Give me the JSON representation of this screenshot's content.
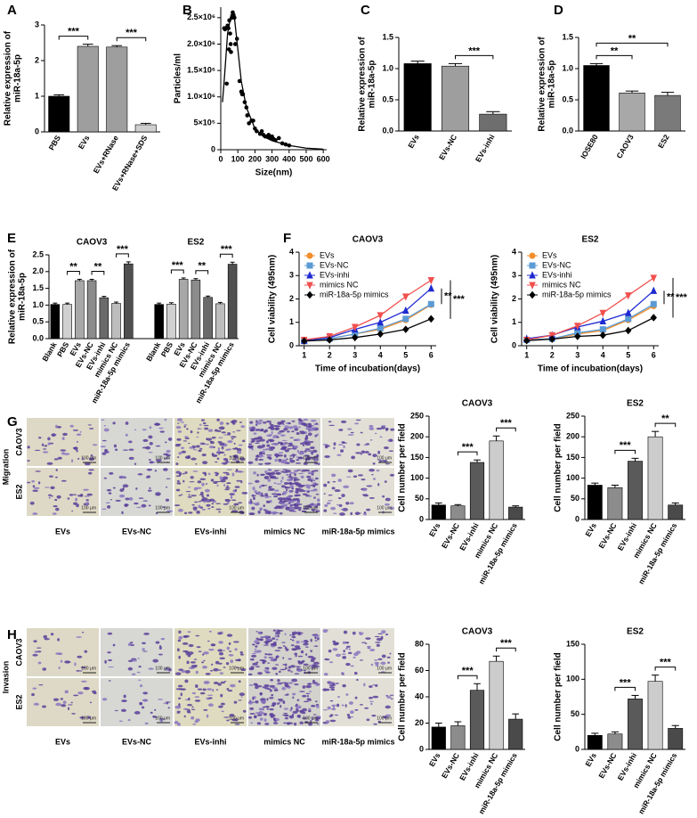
{
  "panel_labels": [
    "A",
    "B",
    "C",
    "D",
    "E",
    "F",
    "G",
    "H"
  ],
  "micrographs": [
    {
      "condition": "Migration",
      "rows": [
        "CAOV3",
        "ES2"
      ],
      "columns": [
        "EVs",
        "EVs-NC",
        "EVs-inhi",
        "mimics NC",
        "miR-18a-5p mimics"
      ],
      "scale_bar": "100 μm"
    },
    {
      "condition": "Invasion",
      "rows": [
        "CAOV3",
        "ES2"
      ],
      "columns": [
        "EVs",
        "EVs-NC",
        "EVs-inhi",
        "mimics NC",
        "miR-18a-5p mimics"
      ],
      "scale_bar": "100 μm"
    }
  ],
  "chart_data": [
    {
      "type": "bar",
      "ylabel": [
        "Relative expression of",
        "miR-18a-5p"
      ],
      "categories": [
        "PBS",
        "EVs",
        "EVs+RNase",
        "EVs+RNase+SDS"
      ],
      "values": [
        1.0,
        2.4,
        2.38,
        0.2
      ],
      "errors": [
        0.04,
        0.06,
        0.04,
        0.04
      ],
      "colors": [
        "#000000",
        "#9e9e9e",
        "#9e9e9e",
        "#cfcfcf"
      ],
      "ylim": [
        0,
        3
      ],
      "yticks": [
        0,
        1,
        2,
        3
      ],
      "annotations": [
        {
          "from": 0,
          "to": 1,
          "text": "***"
        },
        {
          "from": 2,
          "to": 3,
          "text": "***"
        }
      ]
    },
    {
      "type": "scatter",
      "ylabel": "Particles/ml",
      "xlabel": "Size(nm)",
      "color": "#000000",
      "x": [
        20,
        25,
        30,
        35,
        40,
        45,
        48,
        50,
        55,
        58,
        60,
        65,
        70,
        75,
        80,
        85,
        95,
        110,
        120,
        125,
        130,
        140,
        150,
        155,
        165,
        180,
        190,
        200,
        210,
        230,
        240,
        250,
        260,
        270,
        280,
        290,
        300,
        310,
        320,
        340,
        360,
        380,
        400
      ],
      "values": [
        2300000,
        2280000,
        2300000,
        1250000,
        2350000,
        2300000,
        1900000,
        2450000,
        2200000,
        2000000,
        1850000,
        2500000,
        2600000,
        2550000,
        2500000,
        2000000,
        2100000,
        1300000,
        1100000,
        1050000,
        1050000,
        900000,
        800000,
        650000,
        500000,
        550000,
        550000,
        400000,
        350000,
        300000,
        350000,
        280000,
        250000,
        250000,
        280000,
        220000,
        250000,
        200000,
        180000,
        220000,
        120000,
        100000,
        80000
      ],
      "fit_x": [
        10,
        20,
        40,
        60,
        70,
        80,
        100,
        120,
        150,
        200,
        250,
        300,
        400,
        500,
        600
      ],
      "fit_values": [
        900000,
        1300000,
        2200000,
        2550000,
        2600000,
        2500000,
        1900000,
        1300000,
        800000,
        400000,
        250000,
        170000,
        80000,
        30000,
        10000
      ],
      "xlim": [
        0,
        620
      ],
      "xticks": [
        0,
        100,
        200,
        300,
        400,
        500,
        600
      ],
      "ylim": [
        0,
        2700000
      ],
      "yticks": [
        0,
        {
          "value": 500000,
          "label": "5×10⁵"
        },
        {
          "value": 1000000,
          "label": "1.0×10⁶"
        },
        {
          "value": 1500000,
          "label": "1.5×10⁶"
        },
        {
          "value": 2000000,
          "label": "2.0×10⁶"
        },
        {
          "value": 2500000,
          "label": "2.5×10⁶"
        }
      ]
    },
    {
      "type": "bar",
      "ylabel": [
        "Relative expression of",
        "miR-18a-5p"
      ],
      "categories": [
        "EVs",
        "EVs-NC",
        "EVs-inhi"
      ],
      "values": [
        1.08,
        1.04,
        0.27
      ],
      "errors": [
        0.04,
        0.04,
        0.04
      ],
      "colors": [
        "#000000",
        "#9e9e9e",
        "#6e6e6e"
      ],
      "ylim": [
        0,
        1.5
      ],
      "yticks": [
        {
          "value": 0,
          "label": "0.0"
        },
        0.5,
        {
          "value": 1,
          "label": "1.0"
        },
        1.5
      ],
      "annotations": [
        {
          "from": 1,
          "to": 2,
          "text": "***"
        }
      ]
    },
    {
      "type": "bar",
      "ylabel": [
        "Relative expression of",
        "miR-18a-5p"
      ],
      "categories": [
        "IOSE80",
        "CAOV3",
        "ES2"
      ],
      "values": [
        1.05,
        0.61,
        0.57
      ],
      "errors": [
        0.03,
        0.03,
        0.05
      ],
      "colors": [
        "#000000",
        "#a8a8a8",
        "#7a7a7a"
      ],
      "ylim": [
        0,
        1.5
      ],
      "yticks": [
        {
          "value": 0,
          "label": "0.0"
        },
        0.5,
        {
          "value": 1,
          "label": "1.0"
        },
        1.5
      ],
      "annotations": [
        {
          "from": 0,
          "to": 1,
          "text": "**"
        },
        {
          "from": 0,
          "to": 2,
          "text": "**"
        }
      ]
    },
    {
      "type": "bar",
      "ylabel": [
        "Relative expression of",
        "miR-18a-5p"
      ],
      "categories": [
        "Blank",
        "PBS",
        "EVs",
        "EVs-NC",
        "EVs-inhi",
        "mimics NC",
        "miR-18a-5p mimics"
      ],
      "colors": [
        "#000000",
        "#d0d0d0",
        "#a8a8a8",
        "#8c8c8c",
        "#6a6a6a",
        "#bdbdbd",
        "#505050"
      ],
      "ylim": [
        0,
        2.5
      ],
      "yticks": [
        {
          "value": 0,
          "label": "0.0"
        },
        0.5,
        {
          "value": 1,
          "label": "1.0"
        },
        1.5,
        {
          "value": 2,
          "label": "2.0"
        },
        2.5
      ],
      "groups": [
        {
          "title": "CAOV3",
          "values": [
            1.02,
            1.02,
            1.73,
            1.73,
            1.22,
            1.05,
            2.23
          ],
          "errors": [
            0.04,
            0.04,
            0.04,
            0.04,
            0.04,
            0.04,
            0.06
          ],
          "annotations": [
            {
              "from": 1,
              "to": 2,
              "text": "**"
            },
            {
              "from": 3,
              "to": 4,
              "text": "**"
            },
            {
              "from": 5,
              "to": 6,
              "text": "***"
            }
          ]
        },
        {
          "title": "ES2",
          "values": [
            1.02,
            1.03,
            1.77,
            1.75,
            1.23,
            1.04,
            2.22
          ],
          "errors": [
            0.04,
            0.04,
            0.04,
            0.04,
            0.04,
            0.04,
            0.06
          ],
          "annotations": [
            {
              "from": 1,
              "to": 2,
              "text": "***"
            },
            {
              "from": 3,
              "to": 4,
              "text": "**"
            },
            {
              "from": 5,
              "to": 6,
              "text": "***"
            }
          ]
        }
      ]
    },
    {
      "type": "line",
      "title": "CAOV3",
      "ylabel": "Cell viability (495nm)",
      "xlabel": "Time of incubation(days)",
      "x": [
        1,
        2,
        3,
        4,
        5,
        6
      ],
      "xlim": [
        0.8,
        6.2
      ],
      "xticks": [
        1,
        2,
        3,
        4,
        5,
        6
      ],
      "ylim": [
        0,
        4
      ],
      "yticks": [
        0,
        1,
        2,
        3,
        4
      ],
      "series": [
        {
          "name": "EVs",
          "color": "#f28e2b",
          "marker": "circle",
          "values": [
            0.2,
            0.3,
            0.5,
            0.7,
            1.1,
            1.75
          ]
        },
        {
          "name": "EVs-NC",
          "color": "#5b9bd5",
          "marker": "square",
          "values": [
            0.2,
            0.3,
            0.5,
            0.75,
            1.15,
            1.78
          ]
        },
        {
          "name": "EVs-inhi",
          "color": "#1f2bd1",
          "marker": "triangle",
          "values": [
            0.22,
            0.35,
            0.7,
            1.0,
            1.5,
            2.45
          ]
        },
        {
          "name": "mimics NC",
          "color": "#f0504f",
          "marker": "triangle-down",
          "values": [
            0.25,
            0.4,
            0.8,
            1.3,
            2.1,
            2.8
          ]
        },
        {
          "name": "miR-18a-5p mimics",
          "color": "#000000",
          "marker": "diamond",
          "values": [
            0.2,
            0.25,
            0.35,
            0.5,
            0.7,
            1.15
          ]
        }
      ],
      "annotations": [
        {
          "series": [
            1,
            2
          ],
          "text": "**"
        },
        {
          "series": [
            3,
            4
          ],
          "text": "***"
        }
      ]
    },
    {
      "type": "line",
      "title": "ES2",
      "ylabel": "Cell viability (495nm)",
      "xlabel": "Time of incubation(days)",
      "x": [
        1,
        2,
        3,
        4,
        5,
        6
      ],
      "xlim": [
        0.8,
        6.2
      ],
      "xticks": [
        1,
        2,
        3,
        4,
        5,
        6
      ],
      "ylim": [
        0,
        4
      ],
      "yticks": [
        0,
        1,
        2,
        3,
        4
      ],
      "series": [
        {
          "name": "EVs",
          "color": "#f28e2b",
          "marker": "circle",
          "values": [
            0.25,
            0.3,
            0.5,
            0.65,
            1.1,
            1.7
          ]
        },
        {
          "name": "EVs-NC",
          "color": "#5b9bd5",
          "marker": "square",
          "values": [
            0.25,
            0.3,
            0.55,
            0.7,
            1.15,
            1.78
          ]
        },
        {
          "name": "EVs-inhi",
          "color": "#1f2bd1",
          "marker": "triangle",
          "values": [
            0.3,
            0.45,
            0.8,
            1.05,
            1.4,
            2.35
          ]
        },
        {
          "name": "mimics NC",
          "color": "#f0504f",
          "marker": "triangle-down",
          "values": [
            0.25,
            0.45,
            0.85,
            1.4,
            2.15,
            2.9
          ]
        },
        {
          "name": "miR-18a-5p mimics",
          "color": "#000000",
          "marker": "diamond",
          "values": [
            0.22,
            0.28,
            0.4,
            0.45,
            0.65,
            1.2
          ]
        }
      ],
      "annotations": [
        {
          "series": [
            1,
            2
          ],
          "text": "**"
        },
        {
          "series": [
            3,
            4
          ],
          "text": "***"
        }
      ]
    },
    {
      "type": "bar",
      "title": "CAOV3",
      "ylabel": "Cell number per field",
      "categories": [
        "EVs",
        "EVs-NC",
        "EVs-inhi",
        "mimics NC",
        "miR-18a-5p mimics"
      ],
      "values": [
        35,
        33,
        138,
        190,
        30
      ],
      "errors": [
        5,
        3,
        6,
        12,
        3
      ],
      "colors": [
        "#000000",
        "#8c8c8c",
        "#5a5a5a",
        "#cccccc",
        "#4a4a4a"
      ],
      "ylim": [
        0,
        250
      ],
      "yticks": [
        0,
        50,
        100,
        150,
        200,
        250
      ],
      "annotations": [
        {
          "from": 1,
          "to": 2,
          "text": "***"
        },
        {
          "from": 3,
          "to": 4,
          "text": "***"
        }
      ]
    },
    {
      "type": "bar",
      "title": "ES2",
      "ylabel": "Cell number per field",
      "categories": [
        "EVs",
        "EVs-NC",
        "EVs-inhi",
        "mimics NC",
        "miR-18a-5p mimics"
      ],
      "values": [
        83,
        77,
        141,
        200,
        35
      ],
      "errors": [
        5,
        6,
        7,
        13,
        5
      ],
      "colors": [
        "#000000",
        "#8c8c8c",
        "#5a5a5a",
        "#cccccc",
        "#4a4a4a"
      ],
      "ylim": [
        0,
        250
      ],
      "yticks": [
        0,
        50,
        100,
        150,
        200,
        250
      ],
      "annotations": [
        {
          "from": 1,
          "to": 2,
          "text": "***"
        },
        {
          "from": 3,
          "to": 4,
          "text": "**"
        }
      ]
    },
    {
      "type": "bar",
      "title": "CAOV3",
      "ylabel": "Cell number per field",
      "categories": [
        "EVs",
        "EVs-NC",
        "EVs-inhi",
        "mimics NC",
        "miR-18a-5p mimics"
      ],
      "values": [
        17,
        18,
        45,
        67,
        23
      ],
      "errors": [
        3,
        3,
        5,
        4,
        4
      ],
      "colors": [
        "#000000",
        "#8c8c8c",
        "#5a5a5a",
        "#cccccc",
        "#4a4a4a"
      ],
      "ylim": [
        0,
        80
      ],
      "yticks": [
        0,
        20,
        40,
        60,
        80
      ],
      "annotations": [
        {
          "from": 1,
          "to": 2,
          "text": "***"
        },
        {
          "from": 3,
          "to": 4,
          "text": "***"
        }
      ]
    },
    {
      "type": "bar",
      "title": "ES2",
      "ylabel": "Cell number per field",
      "categories": [
        "EVs",
        "EVs-NC",
        "EVs-inhi",
        "mimics NC",
        "miR-18a-5p mimics"
      ],
      "values": [
        20,
        22,
        72,
        97,
        30
      ],
      "errors": [
        3,
        3,
        5,
        9,
        4
      ],
      "colors": [
        "#000000",
        "#8c8c8c",
        "#5a5a5a",
        "#cccccc",
        "#4a4a4a"
      ],
      "ylim": [
        0,
        150
      ],
      "yticks": [
        0,
        50,
        100,
        150
      ],
      "annotations": [
        {
          "from": 1,
          "to": 2,
          "text": "***"
        },
        {
          "from": 3,
          "to": 4,
          "text": "***"
        }
      ]
    }
  ]
}
